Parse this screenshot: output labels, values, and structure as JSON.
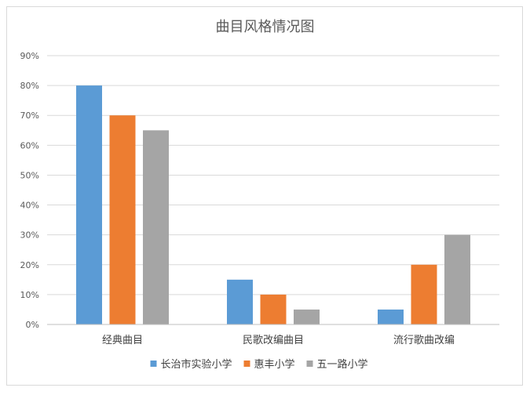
{
  "chart_data": {
    "type": "bar",
    "title": "曲目风格情况图",
    "categories": [
      "经典曲目",
      "民歌改编曲目",
      "流行歌曲改编"
    ],
    "series": [
      {
        "name": "长治市实验小学",
        "color": "#5B9BD5",
        "values": [
          80,
          15,
          5
        ]
      },
      {
        "name": "惠丰小学",
        "color": "#ED7D31",
        "values": [
          70,
          10,
          20
        ]
      },
      {
        "name": "五一路小学",
        "color": "#A5A5A5",
        "values": [
          65,
          5,
          30
        ]
      }
    ],
    "yticks": [
      "0%",
      "10%",
      "20%",
      "30%",
      "40%",
      "50%",
      "60%",
      "70%",
      "80%",
      "90%"
    ],
    "ylim": [
      0,
      90
    ],
    "y_unit": "%",
    "grid": true,
    "legend_position": "bottom"
  }
}
